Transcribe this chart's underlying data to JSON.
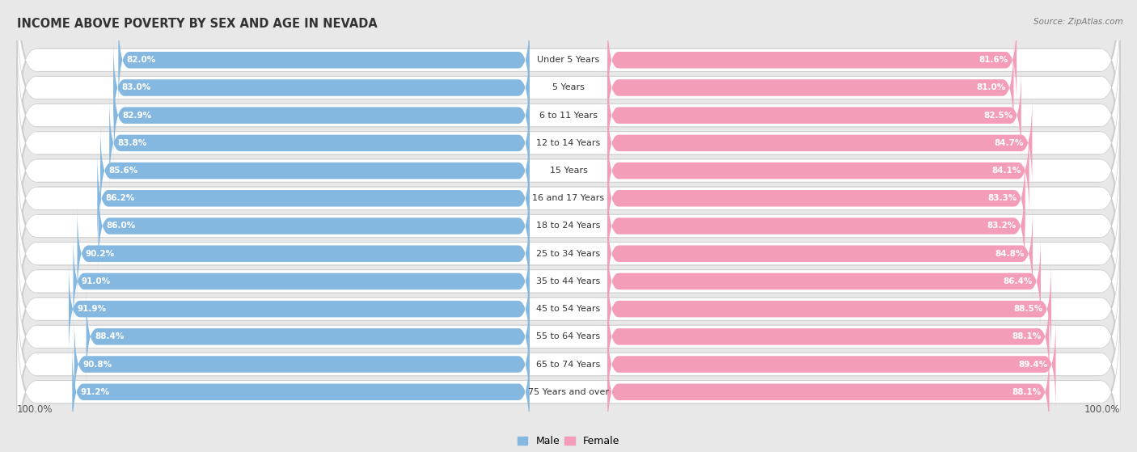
{
  "title": "INCOME ABOVE POVERTY BY SEX AND AGE IN NEVADA",
  "source": "Source: ZipAtlas.com",
  "categories": [
    "Under 5 Years",
    "5 Years",
    "6 to 11 Years",
    "12 to 14 Years",
    "15 Years",
    "16 and 17 Years",
    "18 to 24 Years",
    "25 to 34 Years",
    "35 to 44 Years",
    "45 to 54 Years",
    "55 to 64 Years",
    "65 to 74 Years",
    "75 Years and over"
  ],
  "male_values": [
    82.0,
    83.0,
    82.9,
    83.8,
    85.6,
    86.2,
    86.0,
    90.2,
    91.0,
    91.9,
    88.4,
    90.8,
    91.2
  ],
  "female_values": [
    81.6,
    81.0,
    82.5,
    84.7,
    84.1,
    83.3,
    83.2,
    84.8,
    86.4,
    88.5,
    88.1,
    89.4,
    88.1
  ],
  "male_color": "#85b8e0",
  "female_color": "#f49db8",
  "male_label": "Male",
  "female_label": "Female",
  "bg_color": "#e8e8e8",
  "row_bg_color": "#f0f0f0",
  "bar_bg_inner": "#dce8f2",
  "title_fontsize": 10.5,
  "value_fontsize": 7.5,
  "category_fontsize": 8.0,
  "axis_label_fontsize": 8.5
}
